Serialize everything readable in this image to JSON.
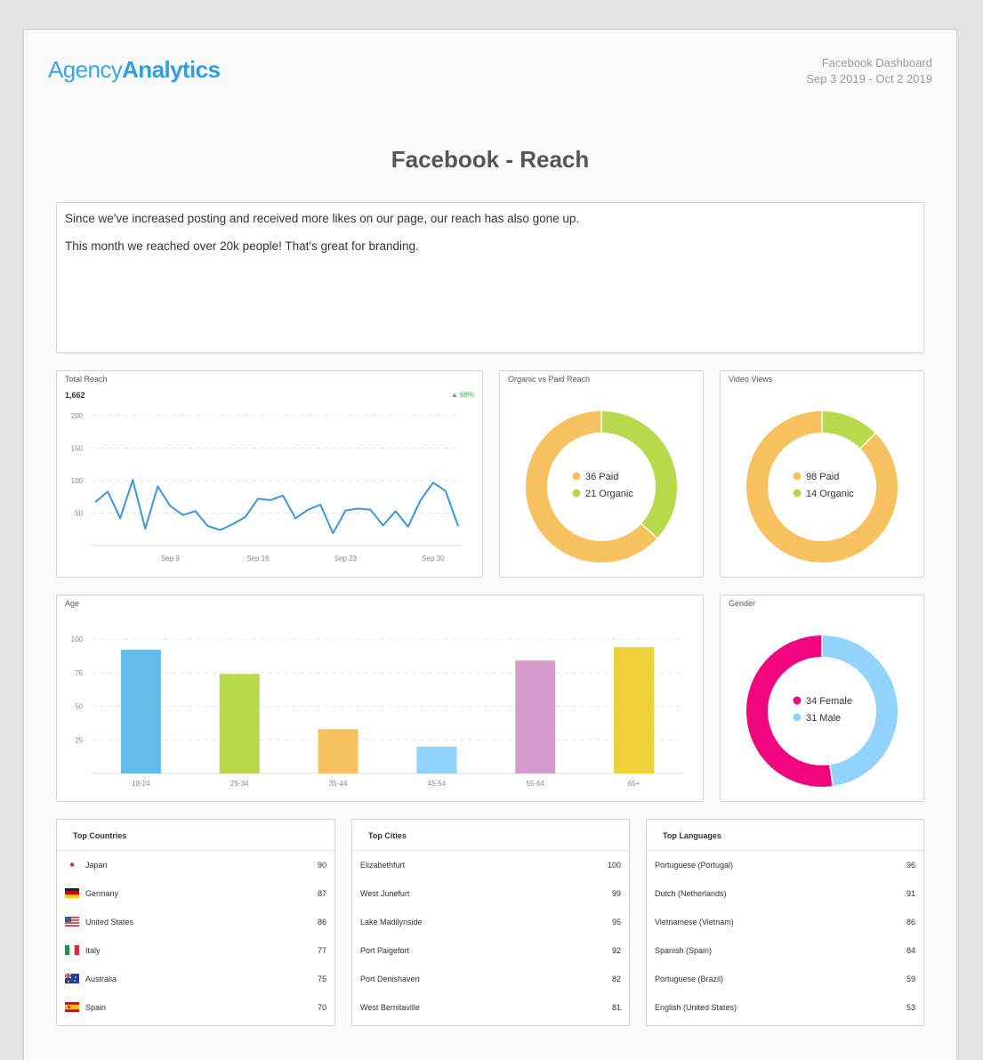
{
  "brand": {
    "logo_light": "Agency",
    "logo_bold": "Analytics"
  },
  "header": {
    "dashboard": "Facebook Dashboard",
    "date_range": "Sep 3 2019 - Oct 2 2019"
  },
  "page_title": "Facebook - Reach",
  "note": {
    "line1": "Since we've increased posting and received more likes on our page, our reach has also gone up.",
    "line2": "This month we reached over 20k people! That's great for branding."
  },
  "total_reach": {
    "title": "Total Reach",
    "value": "1,662",
    "delta": "66%"
  },
  "organic_paid": {
    "title": "Organic vs Paid Reach"
  },
  "video_views": {
    "title": "Video Views"
  },
  "age": {
    "title": "Age"
  },
  "gender": {
    "title": "Gender"
  },
  "colors": {
    "line": "#3a97d9",
    "paid": "#f8c160",
    "organic": "#b8d94b",
    "female": "#f0047f",
    "male": "#92d3fb"
  },
  "chart_data": [
    {
      "type": "line",
      "title": "Total Reach",
      "x": [
        "Sep 3",
        "Sep 4",
        "Sep 5",
        "Sep 6",
        "Sep 7",
        "Sep 8",
        "Sep 9",
        "Sep 10",
        "Sep 11",
        "Sep 12",
        "Sep 13",
        "Sep 14",
        "Sep 15",
        "Sep 16",
        "Sep 17",
        "Sep 18",
        "Sep 19",
        "Sep 20",
        "Sep 21",
        "Sep 22",
        "Sep 23",
        "Sep 24",
        "Sep 25",
        "Sep 26",
        "Sep 27",
        "Sep 28",
        "Sep 29",
        "Sep 30",
        "Oct 1",
        "Oct 2"
      ],
      "xticks": [
        "Sep 9",
        "Sep 16",
        "Sep 23",
        "Sep 30"
      ],
      "series": [
        {
          "values": [
            67,
            83,
            42,
            101,
            26,
            91,
            61,
            47,
            53,
            30,
            24,
            33,
            44,
            72,
            70,
            77,
            42,
            55,
            63,
            19,
            54,
            57,
            55,
            31,
            53,
            29,
            70,
            97,
            84,
            30
          ]
        }
      ],
      "yticks": [
        50,
        100,
        150,
        200
      ],
      "ylim": [
        0,
        200
      ]
    },
    {
      "type": "pie",
      "title": "Organic vs Paid Reach",
      "donut": true,
      "slices": [
        {
          "label": "Paid",
          "value": 36
        },
        {
          "label": "Organic",
          "value": 21
        }
      ]
    },
    {
      "type": "pie",
      "title": "Video Views",
      "donut": true,
      "slices": [
        {
          "label": "Paid",
          "value": 98
        },
        {
          "label": "Organic",
          "value": 14
        }
      ]
    },
    {
      "type": "bar",
      "title": "Age",
      "categories": [
        "18-24",
        "25-34",
        "35-44",
        "45-54",
        "55-64",
        "65+"
      ],
      "values": [
        92,
        74,
        33,
        20,
        84,
        94
      ],
      "bar_colors": [
        "#63bce8",
        "#b8d94b",
        "#f8c160",
        "#92d3fb",
        "#d59ccd",
        "#f1d13a"
      ],
      "yticks": [
        25,
        50,
        75,
        100
      ],
      "ylim": [
        0,
        100
      ]
    },
    {
      "type": "pie",
      "title": "Gender",
      "donut": true,
      "slices": [
        {
          "label": "Female",
          "value": 34
        },
        {
          "label": "Male",
          "value": 31
        }
      ]
    }
  ],
  "top_countries": {
    "title": "Top Countries",
    "rows": [
      {
        "flag": "japan-flag-icon",
        "label": "Japan",
        "value": "90"
      },
      {
        "flag": "germany-flag-icon",
        "label": "Germany",
        "value": "87"
      },
      {
        "flag": "usa-flag-icon",
        "label": "United States",
        "value": "86"
      },
      {
        "flag": "italy-flag-icon",
        "label": "Italy",
        "value": "77"
      },
      {
        "flag": "australia-flag-icon",
        "label": "Australia",
        "value": "75"
      },
      {
        "flag": "spain-flag-icon",
        "label": "Spain",
        "value": "70"
      }
    ]
  },
  "top_cities": {
    "title": "Top Cities",
    "rows": [
      {
        "label": "Elizabethfurt",
        "value": "100"
      },
      {
        "label": "West Junefurt",
        "value": "99"
      },
      {
        "label": "Lake Madilynside",
        "value": "95"
      },
      {
        "label": "Port Paigefort",
        "value": "92"
      },
      {
        "label": "Port Denishaven",
        "value": "82"
      },
      {
        "label": "West Bernitaville",
        "value": "81"
      }
    ]
  },
  "top_languages": {
    "title": "Top Languages",
    "rows": [
      {
        "label": "Portuguese (Portugal)",
        "value": "96"
      },
      {
        "label": "Dutch (Netherlands)",
        "value": "91"
      },
      {
        "label": "Vietnamese (Vietnam)",
        "value": "86"
      },
      {
        "label": "Spanish (Spain)",
        "value": "84"
      },
      {
        "label": "Portuguese (Brazil)",
        "value": "59"
      },
      {
        "label": "English (United States)",
        "value": "53"
      }
    ]
  }
}
